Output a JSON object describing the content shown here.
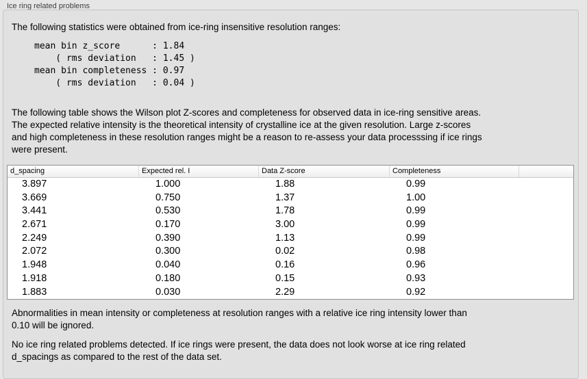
{
  "panel": {
    "title": "Ice ring related problems"
  },
  "stats": {
    "intro": "The following statistics were obtained from ice-ring insensitive resolution ranges:",
    "block": "mean bin z_score      : 1.84\n    ( rms deviation   : 1.45 )\nmean bin completeness : 0.97\n    ( rms deviation   : 0.04 )"
  },
  "description": "The following table shows the Wilson plot Z-scores and completeness for observed data in ice-ring sensitive areas.\nThe expected relative intensity is the theoretical intensity of crystalline ice at the given resolution. Large z-scores\nand high completeness in these resolution ranges might be a reason to re-assess your data processsing if ice rings\nwere present.",
  "table": {
    "columns": [
      "d_spacing",
      "Expected rel. I",
      "Data Z-score",
      "Completeness"
    ],
    "rows": [
      [
        "3.897",
        "1.000",
        "1.88",
        "0.99"
      ],
      [
        "3.669",
        "0.750",
        "1.37",
        "1.00"
      ],
      [
        "3.441",
        "0.530",
        "1.78",
        "0.99"
      ],
      [
        "2.671",
        "0.170",
        "3.00",
        "0.99"
      ],
      [
        "2.249",
        "0.390",
        "1.13",
        "0.99"
      ],
      [
        "2.072",
        "0.300",
        "0.02",
        "0.98"
      ],
      [
        "1.948",
        "0.040",
        "0.16",
        "0.96"
      ],
      [
        "1.918",
        "0.180",
        "0.15",
        "0.93"
      ],
      [
        "1.883",
        "0.030",
        "2.29",
        "0.92"
      ]
    ]
  },
  "notes": {
    "ignored": "Abnormalities in mean intensity or completeness at resolution ranges with a relative ice ring intensity lower than\n0.10 will be ignored.",
    "conclusion": "No ice ring related problems detected. If ice rings were present, the data does not look worse at ice ring related\nd_spacings as compared to the rest of the data set."
  },
  "colors": {
    "page_bg": "#e6e6e6",
    "panel_bg": "#e1e1e1",
    "table_border": "#8f8f8f",
    "table_bg": "#ffffff"
  }
}
